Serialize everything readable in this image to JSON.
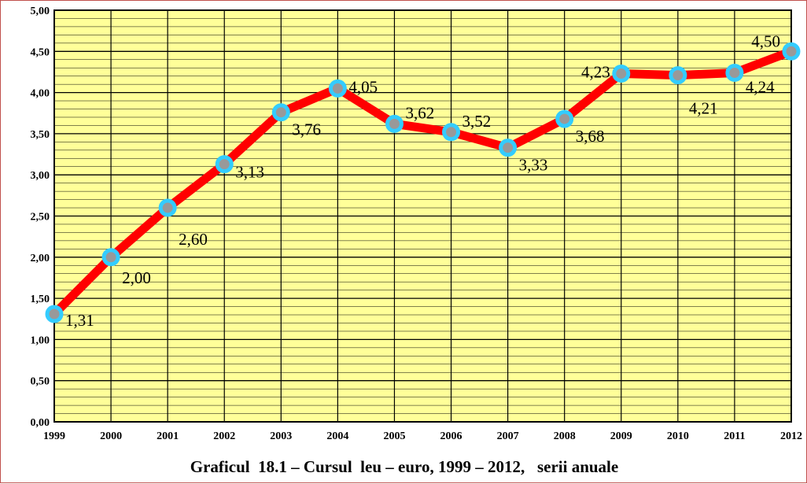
{
  "chart_data": {
    "type": "line",
    "title": "Graficul  18.1 – Cursul  leu – euro, 1999 – 2012,   serii anuale",
    "xlabel": "",
    "ylabel": "",
    "categories": [
      "1999",
      "2000",
      "2001",
      "2002",
      "2003",
      "2004",
      "2005",
      "2006",
      "2007",
      "2008",
      "2009",
      "2010",
      "2011",
      "2012"
    ],
    "values": [
      1.31,
      2.0,
      2.6,
      3.13,
      3.76,
      4.05,
      3.62,
      3.52,
      3.33,
      3.68,
      4.23,
      4.21,
      4.24,
      4.5
    ],
    "data_labels": [
      "1,31",
      "2,00",
      "2,60",
      "3,13",
      "3,76",
      "4,05",
      "3,62",
      "3,52",
      "3,33",
      "3,68",
      "4,23",
      "4,21",
      "4,24",
      "4,50"
    ],
    "ylim": [
      0,
      5
    ],
    "yticks": [
      "0,00",
      "0,50",
      "1,00",
      "1,50",
      "2,00",
      "2,50",
      "3,00",
      "3,50",
      "4,00",
      "4,50",
      "5,00"
    ],
    "grid": true,
    "colors": {
      "plot_background": "#ffff99",
      "line": "#ff0000",
      "marker_fill": "#999999",
      "marker_ring": "#33ccff",
      "grid": "#000000",
      "frame": "#c0504d"
    }
  }
}
